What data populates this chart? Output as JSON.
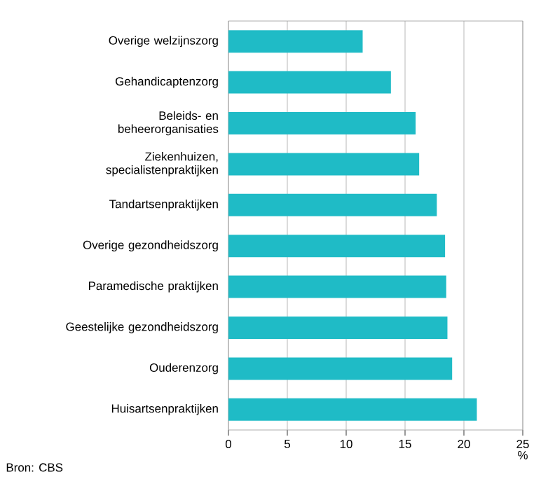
{
  "chart_data": {
    "type": "bar",
    "orientation": "horizontal",
    "xlabel": "%",
    "categories": [
      "Overige welzijnszorg",
      "Gehandicaptenzorg",
      "Beleids- en beheerorganisaties",
      "Ziekenhuizen, specialistenpraktijken",
      "Tandartsenpraktijken",
      "Overige gezondheidszorg",
      "Paramedische praktijken",
      "Geestelijke gezondheidszorg",
      "Ouderenzorg",
      "Huisartsenpraktijken"
    ],
    "values": [
      11.4,
      13.8,
      15.9,
      16.2,
      17.7,
      18.4,
      18.5,
      18.6,
      19.0,
      21.1
    ],
    "color": "#1fbbc6",
    "xlim": [
      0,
      25
    ],
    "xticks": [
      0,
      5,
      10,
      15,
      20,
      25
    ],
    "grid": "x",
    "annotations": [
      "Bron: CBS"
    ]
  }
}
